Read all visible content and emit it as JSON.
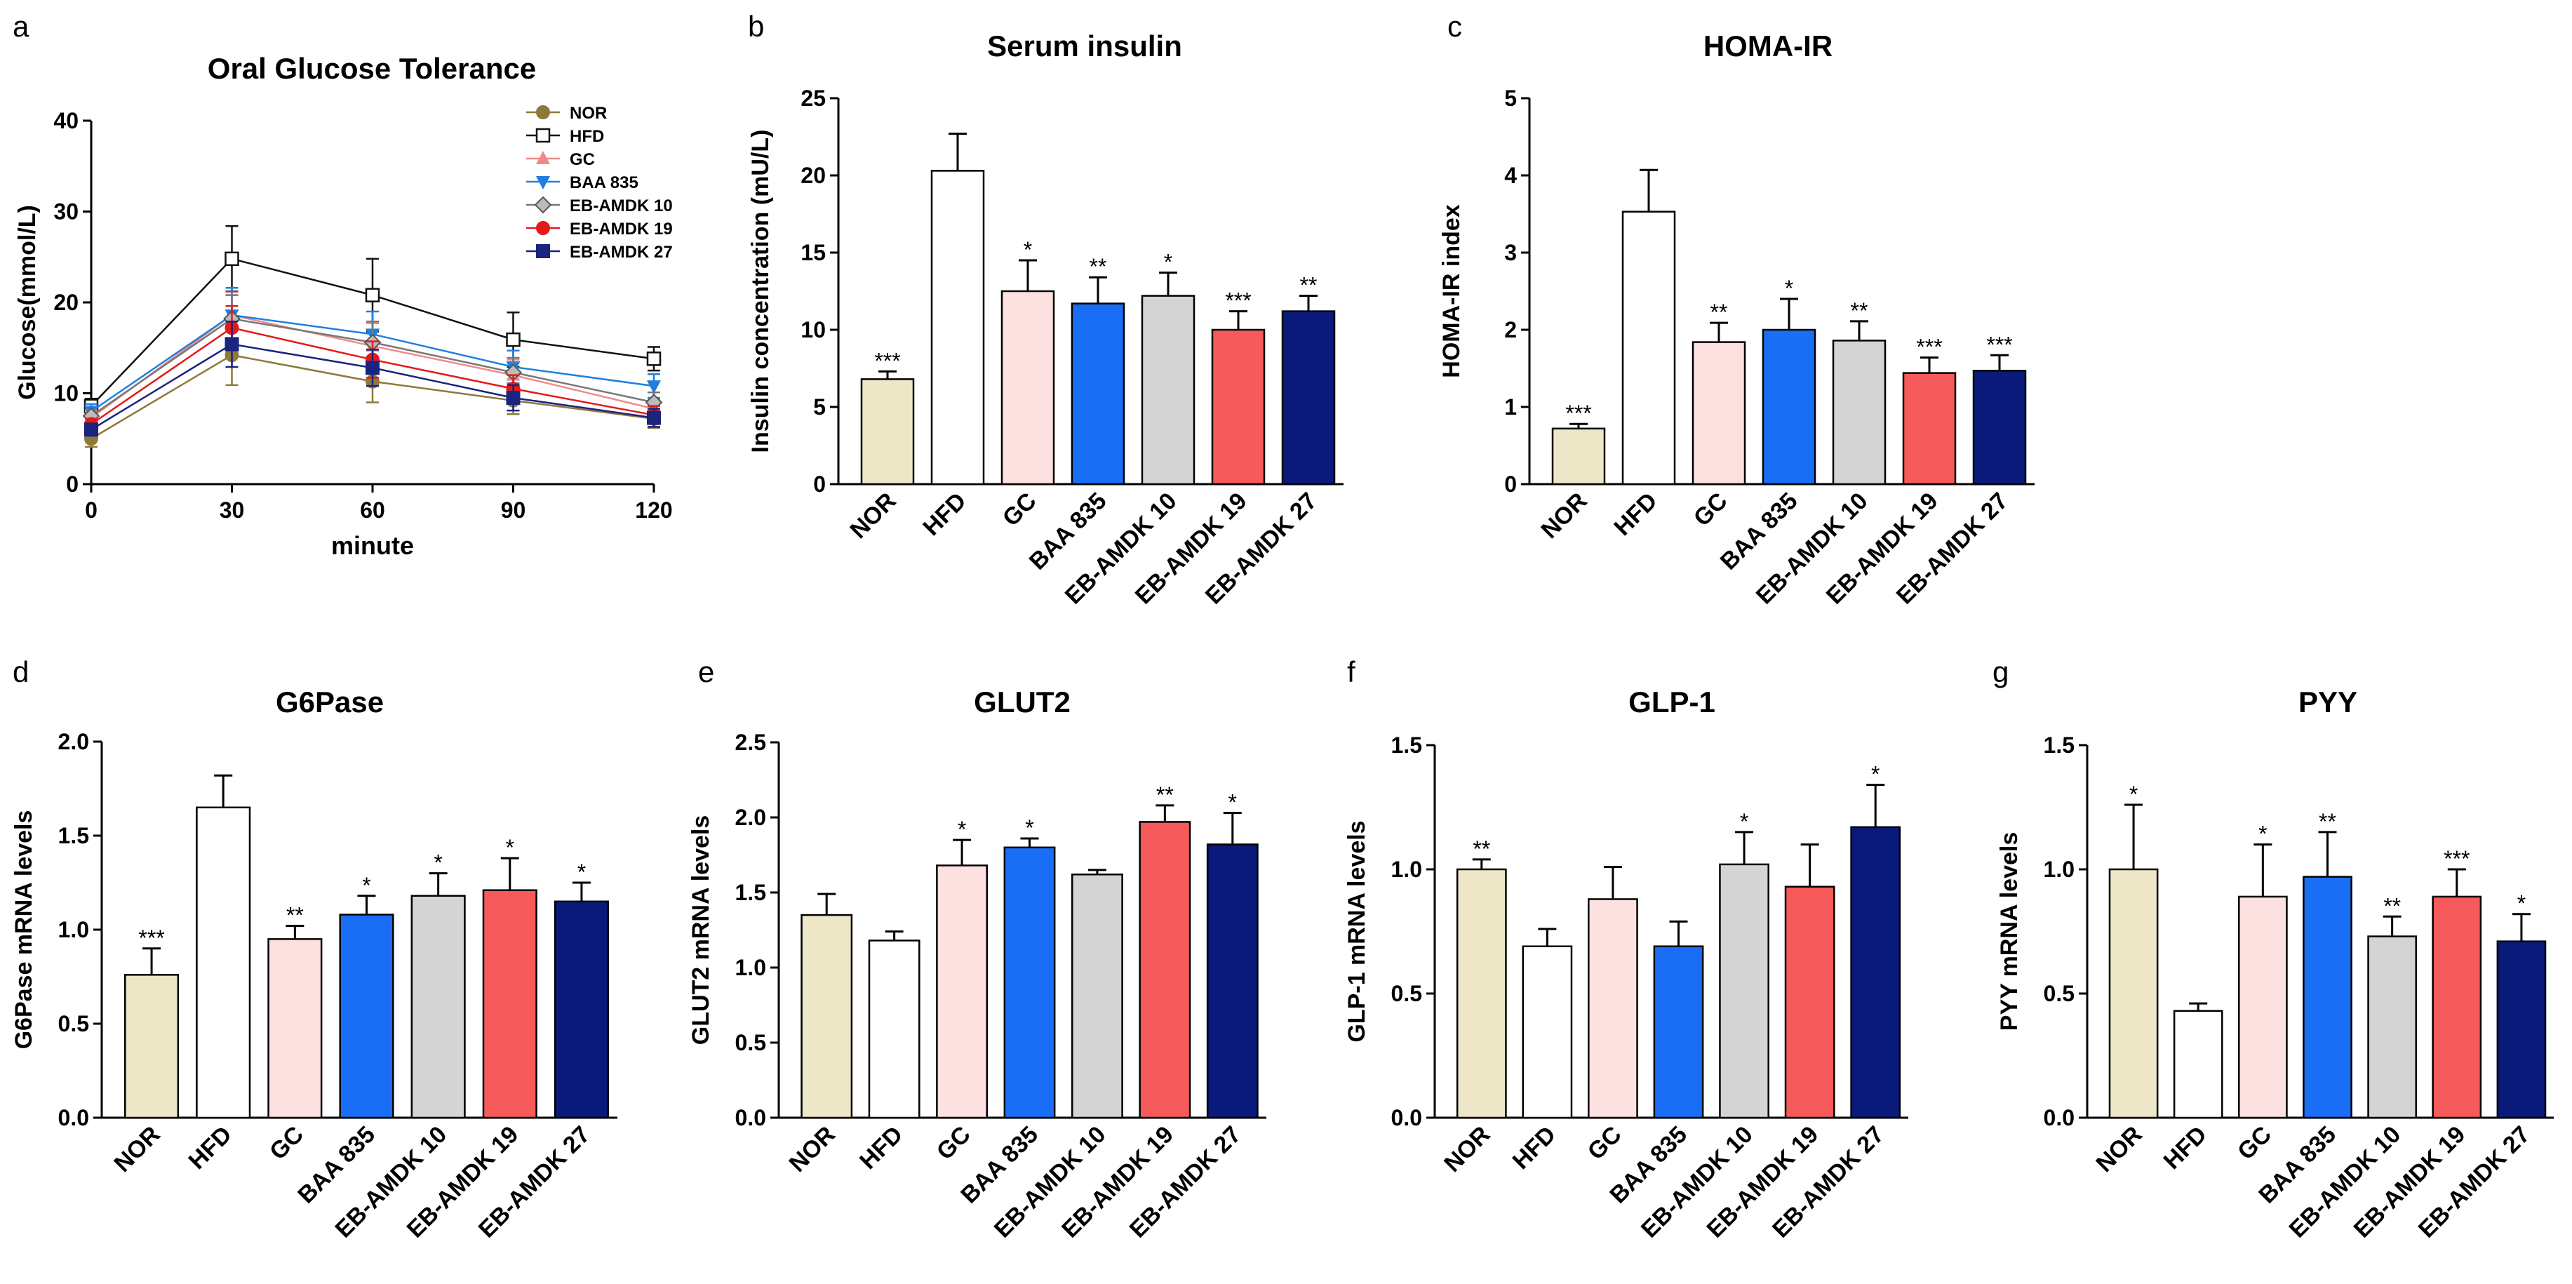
{
  "chart_data": [
    {
      "panel": "a",
      "type": "line",
      "title": "Oral Glucose Tolerance",
      "xlabel": "minute",
      "ylabel": "Glucose(mmol/L)",
      "x": [
        0,
        30,
        60,
        90,
        120
      ],
      "xticks": [
        "0",
        "30",
        "60",
        "90",
        "120"
      ],
      "xlim": [
        0,
        120
      ],
      "ylim": [
        0,
        40
      ],
      "yticks": [
        "0",
        "10",
        "20",
        "30",
        "40"
      ],
      "legend_position": "top-right",
      "series": [
        {
          "name": "NOR",
          "color": "#8c7a3a",
          "marker": "circle",
          "values": [
            5.0,
            14.2,
            11.3,
            9.2,
            7.2
          ],
          "errors": [
            0.9,
            3.3,
            2.3,
            1.5,
            1.0
          ]
        },
        {
          "name": "HFD",
          "color": "#111111",
          "marker": "open-square",
          "values": [
            8.6,
            24.8,
            20.8,
            15.9,
            13.8
          ],
          "errors": [
            0.8,
            3.6,
            4.0,
            3.0,
            1.3
          ]
        },
        {
          "name": "GC",
          "color": "#f08a8a",
          "marker": "triangle-up",
          "values": [
            7.3,
            18.6,
            15.2,
            12.0,
            8.3
          ],
          "errors": [
            0.7,
            2.5,
            2.5,
            1.7,
            1.1
          ]
        },
        {
          "name": "BAA 835",
          "color": "#1f7fe0",
          "marker": "triangle-down",
          "values": [
            8.0,
            18.6,
            16.5,
            12.9,
            10.8
          ],
          "errors": [
            0.8,
            3.0,
            2.5,
            1.8,
            1.3
          ]
        },
        {
          "name": "EB-AMDK 10",
          "color": "#777777",
          "marker": "diamond",
          "values": [
            7.5,
            18.2,
            15.6,
            12.3,
            9.0
          ],
          "errors": [
            0.7,
            2.6,
            2.3,
            1.6,
            1.1
          ]
        },
        {
          "name": "EB-AMDK 19",
          "color": "#e41a1a",
          "marker": "filled-circle",
          "values": [
            6.6,
            17.2,
            13.7,
            10.5,
            7.6
          ],
          "errors": [
            0.6,
            2.4,
            2.0,
            1.5,
            1.0
          ]
        },
        {
          "name": "EB-AMDK 27",
          "color": "#1a237e",
          "marker": "filled-square",
          "values": [
            6.0,
            15.4,
            12.8,
            9.5,
            7.3
          ],
          "errors": [
            0.6,
            2.5,
            2.0,
            1.4,
            1.0
          ]
        }
      ]
    },
    {
      "panel": "b",
      "type": "bar",
      "title": "Serum insulin",
      "ylabel": "Insulin concentration (mU/L)",
      "ylim": [
        0,
        25
      ],
      "yticks": [
        "0",
        "5",
        "10",
        "15",
        "20",
        "25"
      ],
      "categories": [
        "NOR",
        "HFD",
        "GC",
        "BAA 835",
        "EB-AMDK 10",
        "EB-AMDK 19",
        "EB-AMDK 27"
      ],
      "values": [
        6.8,
        20.3,
        12.5,
        11.7,
        12.2,
        10.0,
        11.2
      ],
      "errors": [
        0.5,
        2.4,
        2.0,
        1.7,
        1.5,
        1.2,
        1.0
      ],
      "significance": [
        "***",
        "",
        "*",
        "**",
        "*",
        "***",
        "**"
      ]
    },
    {
      "panel": "c",
      "type": "bar",
      "title": "HOMA-IR",
      "ylabel": "HOMA-IR index",
      "ylim": [
        0,
        5
      ],
      "yticks": [
        "0",
        "1",
        "2",
        "3",
        "4",
        "5"
      ],
      "categories": [
        "NOR",
        "HFD",
        "GC",
        "BAA 835",
        "EB-AMDK 10",
        "EB-AMDK 19",
        "EB-AMDK 27"
      ],
      "values": [
        0.72,
        3.53,
        1.84,
        2.0,
        1.86,
        1.44,
        1.47
      ],
      "errors": [
        0.06,
        0.54,
        0.25,
        0.4,
        0.25,
        0.2,
        0.2
      ],
      "significance": [
        "***",
        "",
        "**",
        "*",
        "**",
        "***",
        "***"
      ]
    },
    {
      "panel": "d",
      "type": "bar",
      "title": "G6Pase",
      "ylabel": "G6Pase mRNA levels",
      "ylim": [
        0,
        2
      ],
      "yticks": [
        "0.0",
        "0.5",
        "1.0",
        "1.5",
        "2.0"
      ],
      "categories": [
        "NOR",
        "HFD",
        "GC",
        "BAA 835",
        "EB-AMDK 10",
        "EB-AMDK 19",
        "EB-AMDK 27"
      ],
      "values": [
        0.76,
        1.65,
        0.95,
        1.08,
        1.18,
        1.21,
        1.15
      ],
      "errors": [
        0.14,
        0.17,
        0.07,
        0.1,
        0.12,
        0.17,
        0.1
      ],
      "significance": [
        "***",
        "",
        "**",
        "*",
        "*",
        "*",
        "*"
      ]
    },
    {
      "panel": "e",
      "type": "bar",
      "title": "GLUT2",
      "ylabel": "GLUT2 mRNA levels",
      "ylim": [
        0,
        2.5
      ],
      "yticks": [
        "0.0",
        "0.5",
        "1.0",
        "1.5",
        "2.0",
        "2.5"
      ],
      "categories": [
        "NOR",
        "HFD",
        "GC",
        "BAA 835",
        "EB-AMDK 10",
        "EB-AMDK 19",
        "EB-AMDK 27"
      ],
      "values": [
        1.35,
        1.18,
        1.68,
        1.8,
        1.62,
        1.97,
        1.82
      ],
      "errors": [
        0.14,
        0.06,
        0.17,
        0.06,
        0.03,
        0.11,
        0.21
      ],
      "significance": [
        "",
        "",
        "*",
        "*",
        "",
        "**",
        "*"
      ]
    },
    {
      "panel": "f",
      "type": "bar",
      "title": "GLP-1",
      "ylabel": "GLP-1 mRNA levels",
      "ylim": [
        0,
        1.5
      ],
      "yticks": [
        "0.0",
        "0.5",
        "1.0",
        "1.5"
      ],
      "categories": [
        "NOR",
        "HFD",
        "GC",
        "BAA 835",
        "EB-AMDK 10",
        "EB-AMDK 19",
        "EB-AMDK 27"
      ],
      "values": [
        1.0,
        0.69,
        0.88,
        0.69,
        1.02,
        0.93,
        1.17
      ],
      "errors": [
        0.04,
        0.07,
        0.13,
        0.1,
        0.13,
        0.17,
        0.17
      ],
      "significance": [
        "**",
        "",
        "",
        "",
        "*",
        "",
        "*"
      ]
    },
    {
      "panel": "g",
      "type": "bar",
      "title": "PYY",
      "ylabel": "PYY mRNA levels",
      "ylim": [
        0,
        1.5
      ],
      "yticks": [
        "0.0",
        "0.5",
        "1.0",
        "1.5"
      ],
      "categories": [
        "NOR",
        "HFD",
        "GC",
        "BAA 835",
        "EB-AMDK 10",
        "EB-AMDK 19",
        "EB-AMDK 27"
      ],
      "values": [
        1.0,
        0.43,
        0.89,
        0.97,
        0.73,
        0.89,
        0.71
      ],
      "errors": [
        0.26,
        0.03,
        0.21,
        0.18,
        0.08,
        0.11,
        0.11
      ],
      "significance": [
        "*",
        "",
        "*",
        "**",
        "**",
        "***",
        "*"
      ]
    }
  ],
  "bar_colors": [
    "#ede6c7",
    "#ffffff",
    "#fde0e0",
    "#1a6ef5",
    "#d4d4d4",
    "#f75a5a",
    "#0a1a7a"
  ]
}
